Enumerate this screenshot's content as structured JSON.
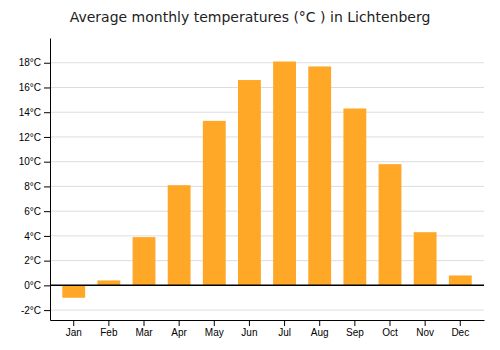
{
  "chart_data": {
    "type": "bar",
    "title": "Average monthly temperatures (°C ) in Lichtenberg",
    "categories": [
      "Jan",
      "Feb",
      "Mar",
      "Apr",
      "May",
      "Jun",
      "Jul",
      "Aug",
      "Sep",
      "Oct",
      "Nov",
      "Dec"
    ],
    "values": [
      -1.0,
      0.4,
      3.9,
      8.1,
      13.3,
      16.6,
      18.1,
      17.7,
      14.3,
      9.8,
      4.3,
      0.8
    ],
    "color": "#FFA726",
    "ylim": [
      -2.8,
      20.0
    ],
    "yticks": [
      {
        "value": -2,
        "label": "-2°C"
      },
      {
        "value": 0,
        "label": "0°C"
      },
      {
        "value": 2,
        "label": "2°C"
      },
      {
        "value": 4,
        "label": "4°C"
      },
      {
        "value": 6,
        "label": "6°C"
      },
      {
        "value": 8,
        "label": "8°C"
      },
      {
        "value": 10,
        "label": "10°C"
      },
      {
        "value": 12,
        "label": "12°C"
      },
      {
        "value": 14,
        "label": "14°C"
      },
      {
        "value": 16,
        "label": "16°C"
      },
      {
        "value": 18,
        "label": "18°C"
      }
    ],
    "grid": true
  }
}
